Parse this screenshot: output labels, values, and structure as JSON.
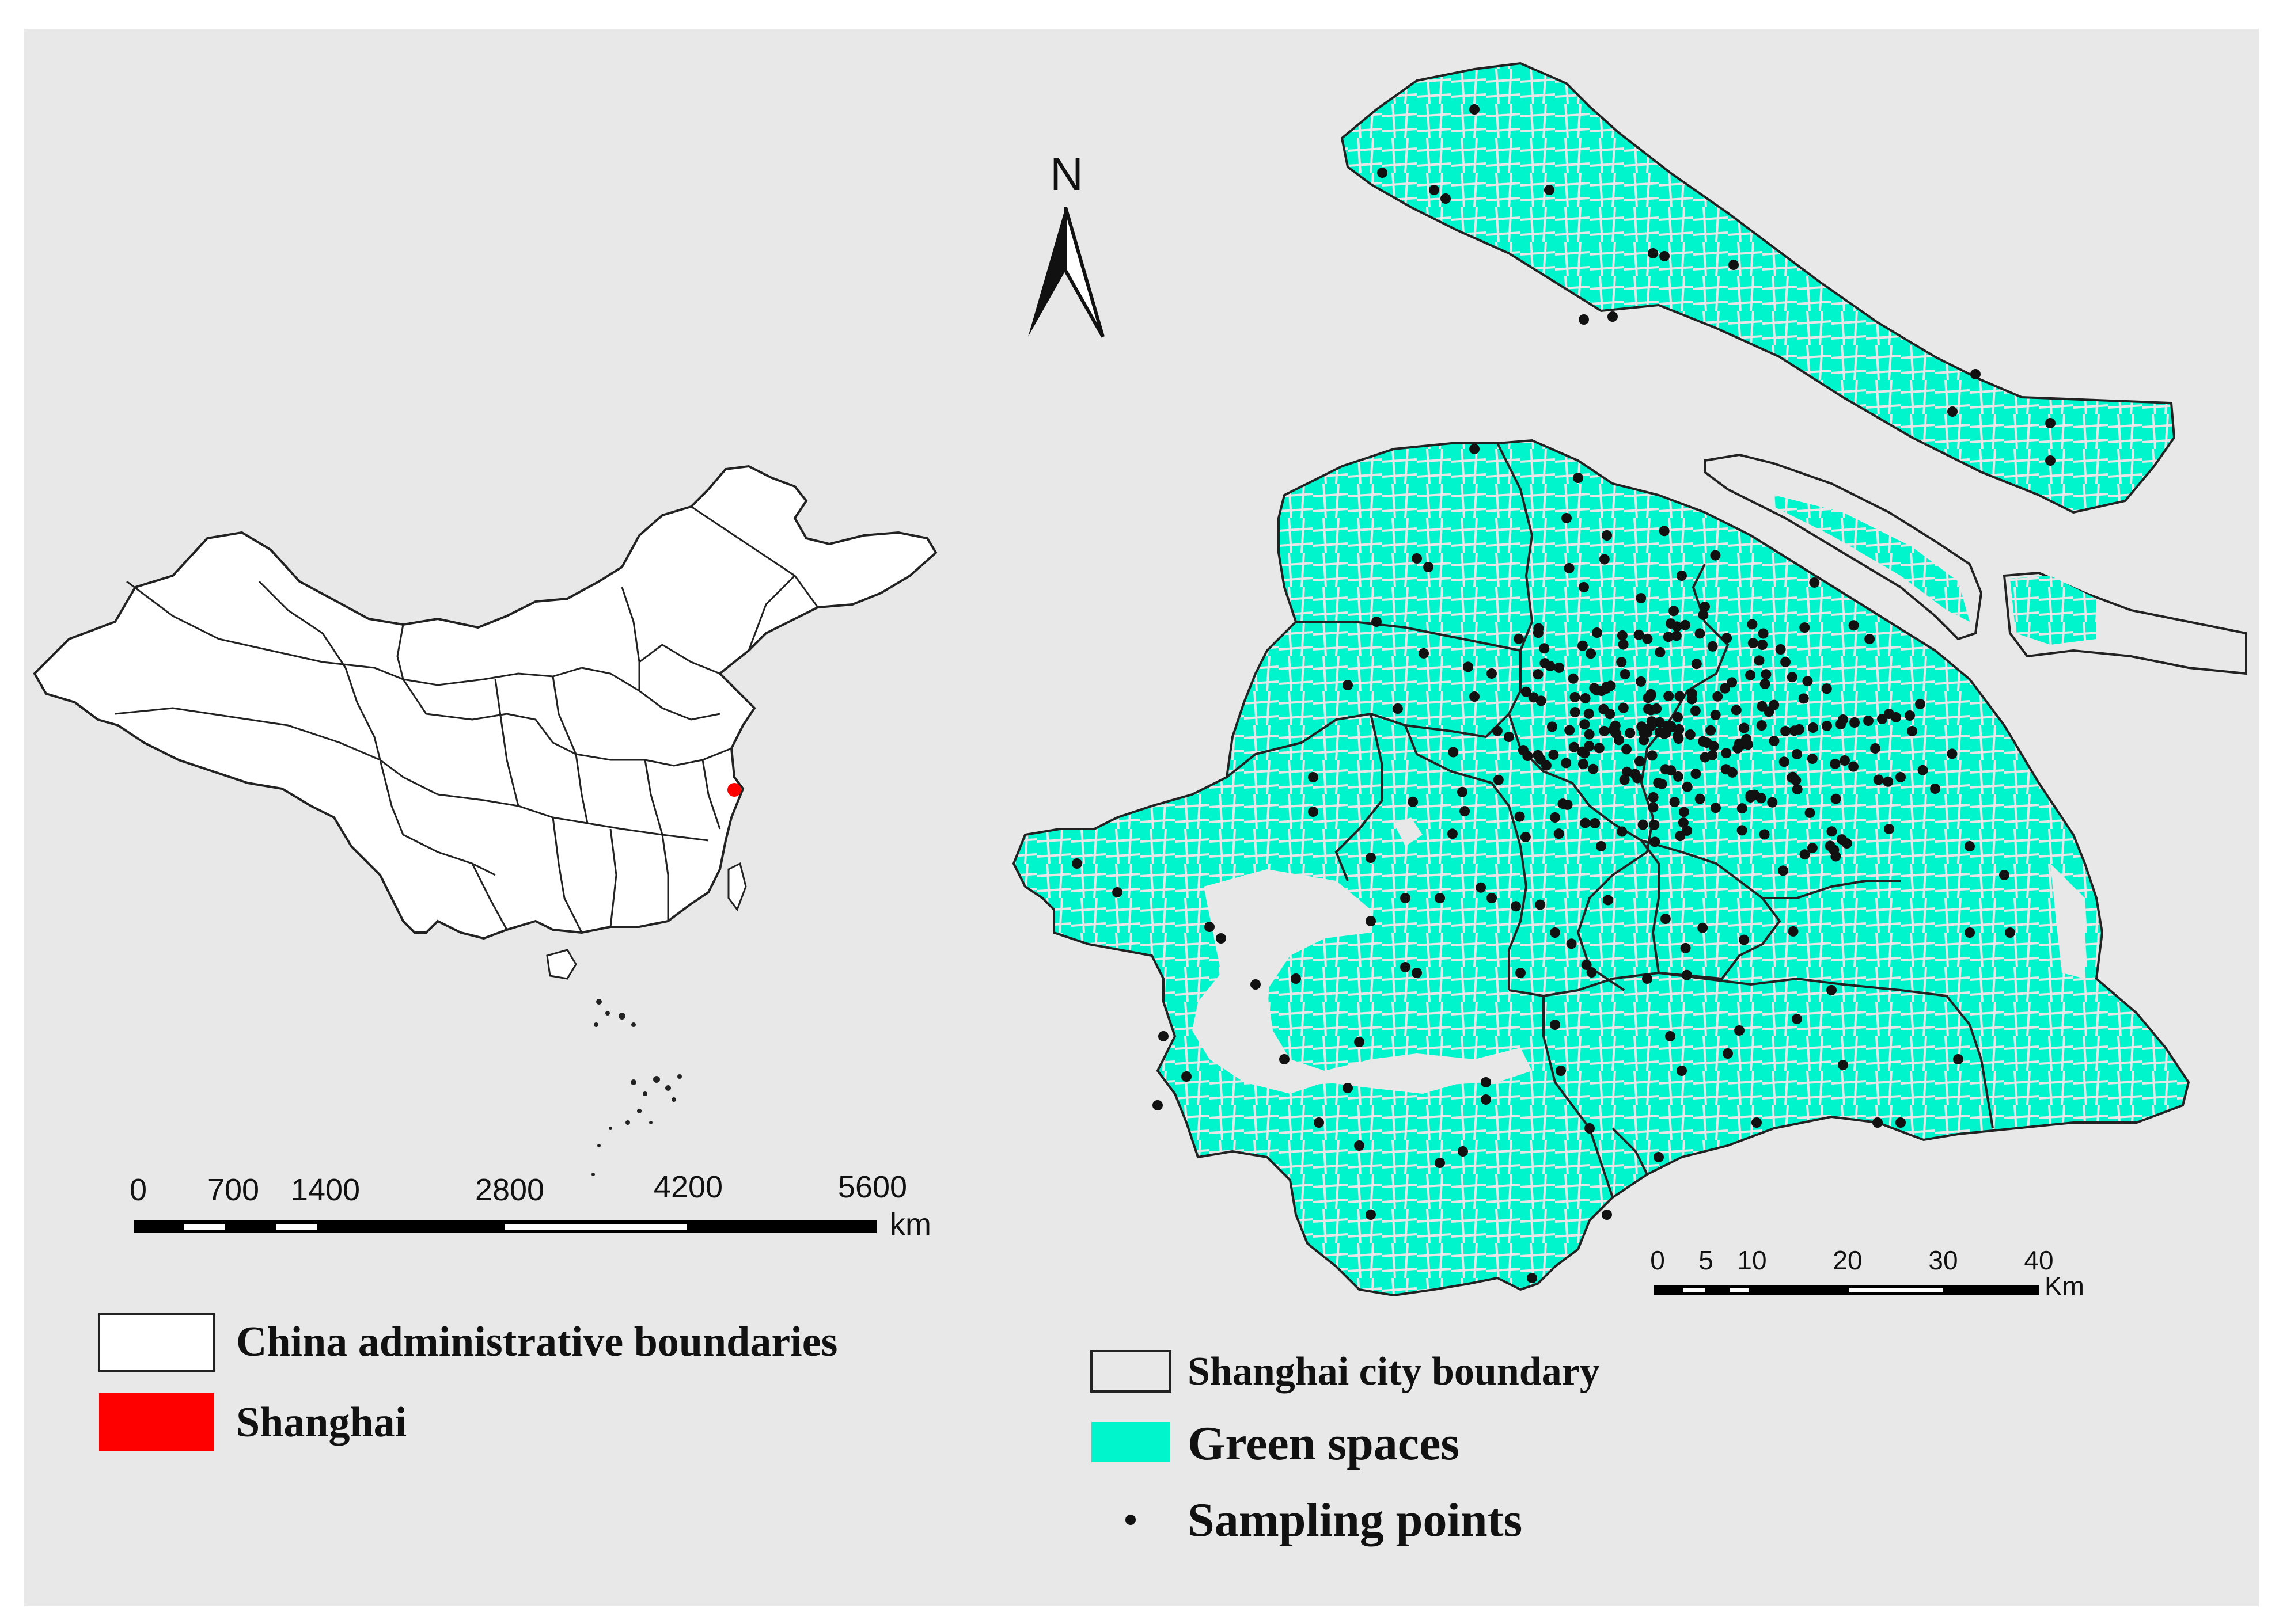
{
  "north_arrow": {
    "label": "N"
  },
  "china_scale": {
    "ticks": [
      "0",
      "700",
      "1400",
      "2800",
      "4200",
      "5600"
    ],
    "unit": "km"
  },
  "shanghai_scale": {
    "ticks": [
      "0",
      "5",
      "10",
      "20",
      "30",
      "40"
    ],
    "unit": "Km"
  },
  "china_legend": [
    {
      "label": "China administrative boundaries",
      "color": "#ffffff"
    },
    {
      "label": "Shanghai",
      "color": "#ff0000"
    }
  ],
  "shanghai_legend": [
    {
      "label": "Shanghai city boundary",
      "color": "#e8e8e8"
    },
    {
      "label": "Green spaces",
      "color": "#00f5cc"
    },
    {
      "label": "Sampling points",
      "color": "#000000"
    }
  ],
  "colors": {
    "background": "#e8e8e8",
    "green_space": "#00f5cc",
    "highlight": "#ff0000",
    "boundary": "#222222"
  }
}
